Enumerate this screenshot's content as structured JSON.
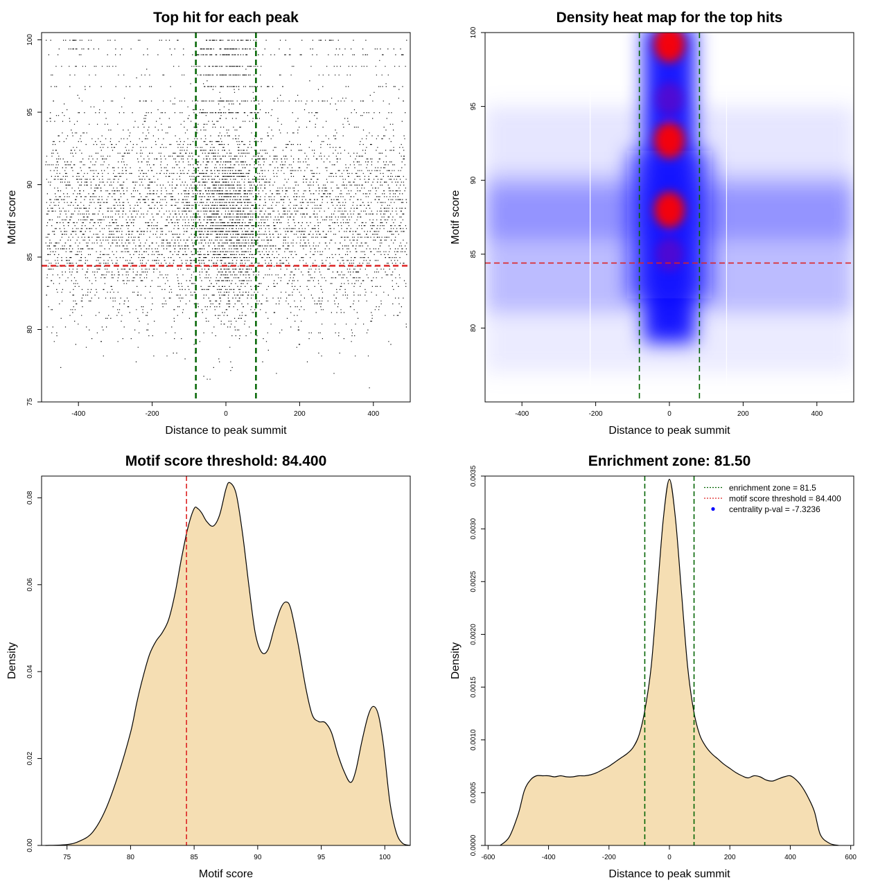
{
  "chart_data": [
    {
      "type": "scatter",
      "title": "Top hit for each peak",
      "xlabel": "Distance to peak summit",
      "ylabel": "Motif score",
      "xlim": [
        -500,
        500
      ],
      "ylim": [
        75,
        100.5
      ],
      "xticks": [
        -400,
        -200,
        0,
        200,
        400
      ],
      "yticks": [
        75,
        80,
        85,
        90,
        95,
        100
      ],
      "hlines": [
        {
          "y": 84.4,
          "color": "#dd2222",
          "dash": true
        }
      ],
      "vlines": [
        {
          "x": -81.5,
          "color": "#006400",
          "dash": true
        },
        {
          "x": 81.5,
          "color": "#006400",
          "dash": true
        }
      ],
      "points_summary": {
        "n_approx": 9000,
        "score_levels_top": [
          100.0,
          99.3,
          99.0,
          98.2,
          97.5,
          96.7,
          95.7,
          95.0
        ],
        "dense_center_range": [
          -80,
          80
        ],
        "dense_score_range": [
          80,
          90
        ]
      },
      "point_color": "#000000"
    },
    {
      "type": "heatmap",
      "title": "Density heat map for the top hits",
      "xlabel": "Distance to peak summit",
      "ylabel": "Motif score",
      "xlim": [
        -500,
        500
      ],
      "ylim": [
        75,
        100
      ],
      "xticks": [
        -400,
        -200,
        0,
        200,
        400
      ],
      "yticks": [
        80,
        85,
        90,
        95,
        100
      ],
      "hlines": [
        {
          "y": 84.4,
          "color": "#dd2222",
          "dash": true
        }
      ],
      "vlines": [
        {
          "x": -81.5,
          "color": "#006400",
          "dash": true
        },
        {
          "x": 81.5,
          "color": "#006400",
          "dash": true
        }
      ],
      "colors": [
        "#ffffff",
        "#0000ff",
        "#ff0000"
      ],
      "hotspots": [
        {
          "x": 0,
          "y": 99.2,
          "level": "high"
        },
        {
          "x": 0,
          "y": 92.7,
          "level": "high"
        },
        {
          "x": 0,
          "y": 88.0,
          "level": "high"
        },
        {
          "x": 0,
          "y": 95.5,
          "level": "medium"
        },
        {
          "x": 0,
          "y": 85.0,
          "level": "medium"
        }
      ]
    },
    {
      "type": "area",
      "title": "Motif score threshold: 84.400",
      "xlabel": "Motif score",
      "ylabel": "Density",
      "xlim": [
        73,
        102
      ],
      "ylim": [
        0,
        0.085
      ],
      "xticks": [
        75,
        80,
        85,
        90,
        95,
        100
      ],
      "yticks": [
        "0.00",
        "0.02",
        "0.04",
        "0.06",
        "0.08"
      ],
      "fill": "#f5deb3",
      "vlines": [
        {
          "x": 84.4,
          "color": "#dd2222",
          "dash": true
        }
      ],
      "x": [
        73.3,
        75,
        76,
        77,
        78,
        79,
        80,
        80.5,
        81,
        81.5,
        82,
        82.5,
        83,
        83.5,
        84,
        84.5,
        85,
        85.3,
        85.6,
        86,
        86.5,
        87,
        87.5,
        87.8,
        88.3,
        88.8,
        89.3,
        89.8,
        90.3,
        90.8,
        91.3,
        91.8,
        92.2,
        92.6,
        93.2,
        93.8,
        94.3,
        94.8,
        95.3,
        95.8,
        96.3,
        96.8,
        97.3,
        97.7,
        98.2,
        98.7,
        99.1,
        99.5,
        99.9,
        100.4,
        100.9,
        101.4,
        102
      ],
      "y": [
        0.0,
        0.0002,
        0.001,
        0.003,
        0.008,
        0.016,
        0.026,
        0.033,
        0.039,
        0.044,
        0.047,
        0.049,
        0.052,
        0.058,
        0.066,
        0.073,
        0.0775,
        0.0775,
        0.0765,
        0.0745,
        0.0735,
        0.076,
        0.082,
        0.0835,
        0.081,
        0.072,
        0.06,
        0.049,
        0.0445,
        0.045,
        0.05,
        0.0545,
        0.056,
        0.0545,
        0.046,
        0.036,
        0.03,
        0.0285,
        0.0283,
        0.026,
        0.021,
        0.017,
        0.0145,
        0.017,
        0.024,
        0.03,
        0.032,
        0.03,
        0.023,
        0.01,
        0.003,
        0.0005,
        0.0
      ]
    },
    {
      "type": "area",
      "title": "Enrichment zone: 81.50",
      "xlabel": "Distance to peak summit",
      "ylabel": "Density",
      "xlim": [
        -610,
        610
      ],
      "ylim": [
        0,
        0.0035
      ],
      "xticks": [
        -600,
        -400,
        -200,
        0,
        200,
        400,
        600
      ],
      "yticks": [
        "0.0000",
        "0.0005",
        "0.0010",
        "0.0015",
        "0.0020",
        "0.0025",
        "0.0030",
        "0.0035"
      ],
      "fill": "#f5deb3",
      "vlines": [
        {
          "x": -81.5,
          "color": "#006400",
          "dash": true
        },
        {
          "x": 81.5,
          "color": "#006400",
          "dash": true
        }
      ],
      "x": [
        -560,
        -530,
        -500,
        -480,
        -460,
        -440,
        -420,
        -400,
        -380,
        -360,
        -340,
        -320,
        -300,
        -280,
        -260,
        -240,
        -220,
        -200,
        -180,
        -160,
        -140,
        -120,
        -100,
        -80,
        -60,
        -40,
        -20,
        0,
        20,
        40,
        60,
        80,
        100,
        120,
        140,
        160,
        180,
        200,
        220,
        240,
        260,
        280,
        300,
        320,
        340,
        360,
        380,
        400,
        420,
        440,
        460,
        480,
        500,
        530,
        560
      ],
      "y": [
        0.0,
        8e-05,
        0.0003,
        0.00052,
        0.00062,
        0.00066,
        0.00066,
        0.00066,
        0.00065,
        0.00066,
        0.00065,
        0.00065,
        0.00066,
        0.00066,
        0.00067,
        0.00069,
        0.00072,
        0.00075,
        0.00079,
        0.00083,
        0.00087,
        0.00093,
        0.00105,
        0.0013,
        0.0017,
        0.0024,
        0.0031,
        0.00347,
        0.0031,
        0.0024,
        0.0017,
        0.00128,
        0.00105,
        0.00094,
        0.00087,
        0.00082,
        0.00077,
        0.00073,
        0.00069,
        0.00066,
        0.00064,
        0.00066,
        0.00065,
        0.00062,
        0.00061,
        0.00063,
        0.00065,
        0.00066,
        0.00062,
        0.00055,
        0.00045,
        0.00032,
        0.0001,
        2e-05,
        0.0
      ],
      "legend": {
        "position": "top-right",
        "items": [
          {
            "label": "enrichment zone = 81.5",
            "color": "#006400",
            "style": "dotted-line"
          },
          {
            "label": "motif score threshold = 84.400",
            "color": "#dd2222",
            "style": "dotted-line"
          },
          {
            "label": "centrality p-val = -7.3236",
            "color": "#0000ff",
            "style": "dot"
          }
        ]
      }
    }
  ]
}
